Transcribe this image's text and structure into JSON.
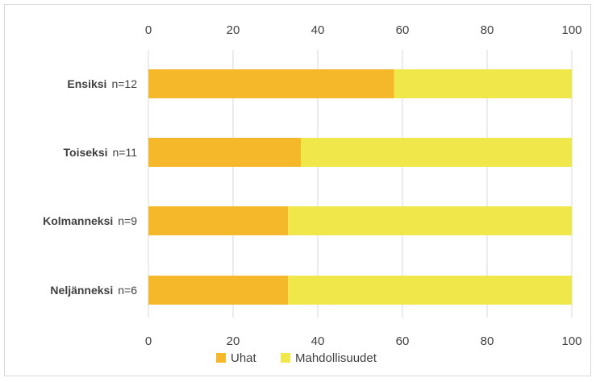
{
  "chart_data": {
    "type": "bar",
    "orientation": "horizontal",
    "stacked": true,
    "categories": [
      {
        "label": "Ensiksi",
        "n": "n=12"
      },
      {
        "label": "Toiseksi",
        "n": "n=11"
      },
      {
        "label": "Kolmanneksi",
        "n": "n=9"
      },
      {
        "label": "Neljänneksi",
        "n": "n=6"
      }
    ],
    "series": [
      {
        "name": "Uhat",
        "color": "#f5b82a",
        "values": [
          58,
          36,
          33,
          33
        ]
      },
      {
        "name": "Mahdollisuudet",
        "color": "#f0e84a",
        "values": [
          42,
          64,
          67,
          67
        ]
      }
    ],
    "xlim": [
      0,
      100
    ],
    "xticks": [
      "0",
      "20",
      "40",
      "60",
      "80",
      "100"
    ],
    "grid": true,
    "axis_labels_top_and_bottom": true,
    "legend_position": "bottom"
  }
}
